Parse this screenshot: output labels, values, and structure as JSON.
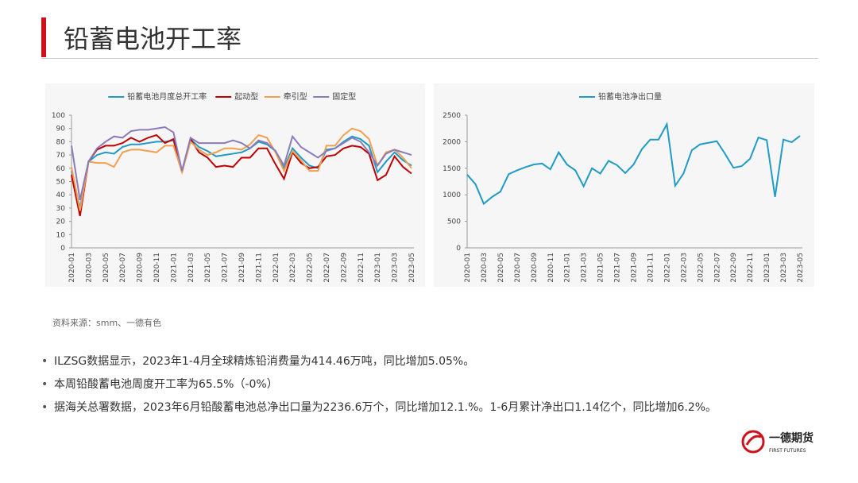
{
  "header": {
    "title": "铅蓄电池开工率"
  },
  "source": "资料来源：smm、一德有色",
  "bullets": [
    "ILZSG数据显示，2023年1-4月全球精炼铅消费量为414.46万吨，同比增加5.05%。",
    "本周铅酸蓄电池周度开工率为65.5%（-0%）",
    "据海关总署数据，2023年6月铅酸蓄电池总净出口量为2236.6万个，同比增加12.1.%。1-6月累计净出口1.14亿个，同比增加6.2%。"
  ],
  "logo": {
    "name": "一德期货",
    "sub": "FIRST FUTURES"
  },
  "chart_data": [
    {
      "type": "line",
      "legend": "top",
      "categories": [
        "2020-01",
        null,
        "2020-03",
        null,
        "2020-05",
        null,
        "2020-07",
        null,
        "2020-09",
        null,
        "2020-11",
        null,
        "2021-01",
        null,
        "2021-03",
        null,
        "2021-05",
        null,
        "2021-07",
        null,
        "2021-09",
        null,
        "2021-11",
        null,
        "2022-01",
        null,
        "2022-03",
        null,
        "2022-05",
        null,
        "2022-07",
        null,
        "2022-09",
        null,
        "2022-11",
        null,
        "2023-01",
        null,
        "2023-03",
        null,
        "2023-05"
      ],
      "ylim": [
        0,
        100
      ],
      "yticks": [
        0,
        10,
        20,
        30,
        40,
        50,
        60,
        70,
        80,
        90,
        100
      ],
      "series": [
        {
          "name": "铅蓄电池月度总开工率",
          "color": "#1f9bc6",
          "values": [
            58,
            30,
            65,
            70,
            72,
            71,
            76,
            78,
            78,
            79,
            80,
            80,
            81,
            58,
            82,
            76,
            73,
            69,
            70,
            71,
            72,
            75,
            80,
            78,
            73,
            60,
            75,
            68,
            62,
            60,
            74,
            75,
            80,
            84,
            82,
            77,
            57,
            65,
            72,
            66,
            62
          ]
        },
        {
          "name": "起动型",
          "color": "#c00000",
          "values": [
            55,
            24,
            65,
            74,
            77,
            77,
            79,
            83,
            80,
            83,
            85,
            79,
            82,
            57,
            82,
            72,
            68,
            61,
            62,
            61,
            68,
            68,
            75,
            75,
            63,
            52,
            72,
            64,
            60,
            61,
            69,
            70,
            75,
            77,
            76,
            71,
            51,
            55,
            69,
            61,
            56
          ]
        },
        {
          "name": "牵引型",
          "color": "#f0a050",
          "values": [
            61,
            28,
            65,
            64,
            64,
            61,
            72,
            74,
            74,
            73,
            72,
            77,
            77,
            57,
            80,
            74,
            70,
            72,
            75,
            75,
            74,
            78,
            85,
            83,
            72,
            58,
            73,
            66,
            58,
            58,
            77,
            77,
            85,
            90,
            88,
            82,
            62,
            72,
            74,
            68,
            60
          ]
        },
        {
          "name": "固定型",
          "color": "#8c7bb8",
          "values": [
            77,
            36,
            65,
            75,
            80,
            84,
            83,
            88,
            89,
            89,
            90,
            91,
            87,
            58,
            83,
            79,
            79,
            79,
            79,
            81,
            79,
            75,
            81,
            79,
            73,
            62,
            84,
            76,
            72,
            68,
            73,
            75,
            79,
            83,
            80,
            72,
            62,
            71,
            74,
            72,
            70
          ]
        }
      ]
    },
    {
      "type": "line",
      "legend": "top",
      "categories": [
        "2020-01",
        null,
        "2020-03",
        null,
        "2020-05",
        null,
        "2020-07",
        null,
        "2020-09",
        null,
        "2020-11",
        null,
        "2021-01",
        null,
        "2021-03",
        null,
        "2021-05",
        null,
        "2021-07",
        null,
        "2021-09",
        null,
        "2021-11",
        null,
        "2022-01",
        null,
        "2022-03",
        null,
        "2022-05",
        null,
        "2022-07",
        null,
        "2022-09",
        null,
        "2022-11",
        null,
        "2023-01",
        null,
        "2023-03",
        null,
        "2023-05"
      ],
      "ylim": [
        0,
        2500
      ],
      "yticks": [
        0,
        500,
        1000,
        1500,
        2000,
        2500
      ],
      "series": [
        {
          "name": "铅蓄电池净出口量",
          "color": "#1f9bc6",
          "values": [
            1380,
            1200,
            830,
            960,
            1060,
            1390,
            1460,
            1520,
            1570,
            1590,
            1480,
            1800,
            1570,
            1460,
            1160,
            1500,
            1400,
            1640,
            1560,
            1410,
            1570,
            1860,
            2040,
            2040,
            2330,
            1170,
            1400,
            1840,
            1950,
            1980,
            2010,
            1770,
            1510,
            1540,
            1680,
            2080,
            2030,
            960,
            2040,
            1990,
            2110
          ]
        }
      ]
    }
  ]
}
